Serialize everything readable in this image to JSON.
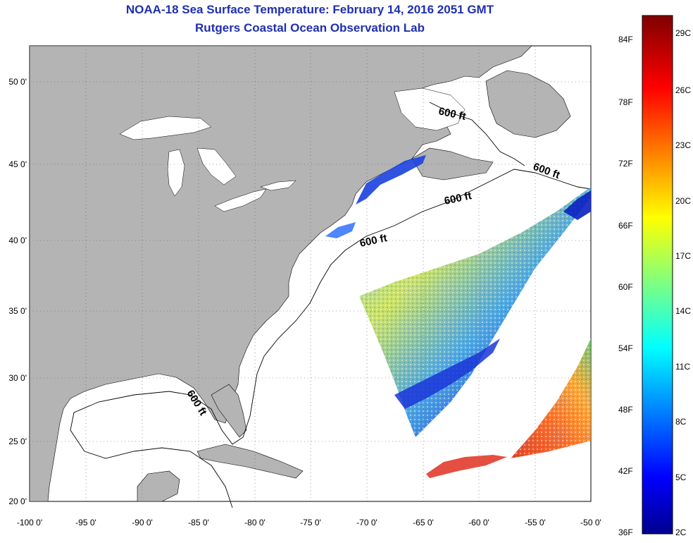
{
  "title_line1": "NOAA-18 Sea Surface Temperature:  February 14, 2016 2051 GMT",
  "title_line2": "Rutgers Coastal Ocean Observation Lab",
  "lat_labels": [
    "50 0'",
    "45 0'",
    "40 0'",
    "35 0'",
    "30 0'",
    "25 0'",
    "20 0'"
  ],
  "lon_labels": [
    "-100 0'",
    "-95 0'",
    "-90 0'",
    "-85 0'",
    "-80 0'",
    "-75 0'",
    "-70 0'",
    "-65 0'",
    "-60 0'",
    "-55 0'",
    "-50 0'"
  ],
  "colorbar": {
    "f_labels": [
      "84F",
      "78F",
      "72F",
      "66F",
      "60F",
      "54F",
      "48F",
      "42F",
      "36F"
    ],
    "c_labels": [
      "29C",
      "26C",
      "23C",
      "20C",
      "17C",
      "14C",
      "11C",
      "8C",
      "5C",
      "2C"
    ]
  },
  "contour_labels": [
    "600 ft",
    "600 ft",
    "600 ft",
    "600 ft",
    "600 ft"
  ],
  "colors": {
    "land": "#b4b4b4",
    "title": "#1f2fb0",
    "contour": "#000000"
  }
}
